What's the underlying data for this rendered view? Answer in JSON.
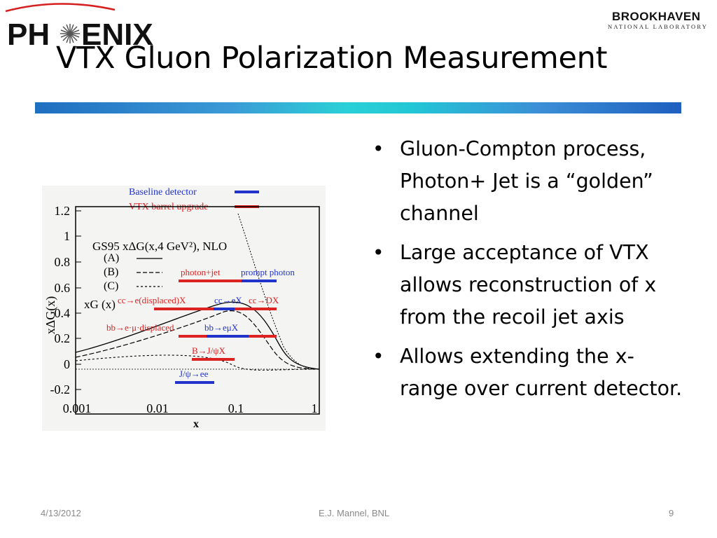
{
  "header": {
    "left_logo_text": "PH✳ENIX",
    "right_logo_line1": "BROOKHAVEN",
    "right_logo_line2": "NATIONAL LABORATORY",
    "title": "VTX Gluon Polarization Measurement"
  },
  "figure": {
    "legend": [
      {
        "label": "Baseline detector",
        "color": "#2233cc"
      },
      {
        "label": "VTX barrel upgrade",
        "color": "#dd2222"
      }
    ],
    "model_label": "GS95 xΔG(x,4 GeV²), NLO",
    "model_entries": [
      "(A)",
      "(B)",
      "(C)"
    ],
    "xg_label": "xG (x)",
    "ylabel": "xΔG(x)",
    "xlabel": "x",
    "x_ticks": [
      "0.001",
      "0.01",
      "0.1",
      "1"
    ],
    "y_ticks": [
      "1.2",
      "1",
      "0.8",
      "0.6",
      "0.4",
      "0.2",
      "0",
      "-0.2"
    ],
    "channels": [
      {
        "label": "photon+jet",
        "color": "#dd2222"
      },
      {
        "label": "prompt photon",
        "color": "#2233cc"
      },
      {
        "label": "cc→e(displaced)X",
        "color": "#dd2222"
      },
      {
        "label": "cc→eX",
        "color": "#2233cc"
      },
      {
        "label": "cc→DX",
        "color": "#dd2222"
      },
      {
        "label": "bb→e·μ·displaced",
        "color": "#dd2222"
      },
      {
        "label": "bb→eμX",
        "color": "#2233cc"
      },
      {
        "label": "B→J/ψX",
        "color": "#dd2222"
      },
      {
        "label": "J/ψ→ee",
        "color": "#2233cc"
      }
    ]
  },
  "bullets": [
    "Gluon-Compton process, Photon+ Jet is a “golden” channel",
    "Large acceptance of VTX allows reconstruction of x from the recoil jet axis",
    "Allows extending the x-range over current detector."
  ],
  "footer": {
    "date": "4/13/2012",
    "author": "E.J. Mannel, BNL",
    "page": "9"
  },
  "colors": {
    "accent_blue": "#1f6fc0",
    "accent_cyan": "#2ad0d6",
    "baseline_blue": "#2233cc",
    "vtx_red": "#dd2222"
  }
}
